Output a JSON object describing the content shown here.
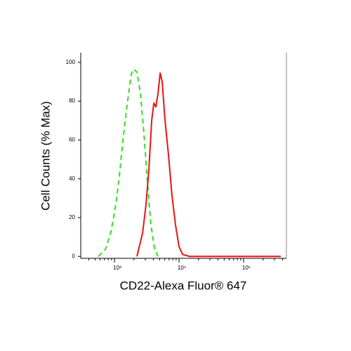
{
  "chart_data": {
    "type": "line",
    "x_label": "CD22-Alexa Fluor® 647",
    "y_label": "Cell Counts (% Max)",
    "xscale": "log",
    "xlim": [
      300,
      460000
    ],
    "ylim": [
      -1,
      105
    ],
    "xticks": [
      {
        "value": 1000,
        "label": "10³"
      },
      {
        "value": 10000,
        "label": "10⁴"
      },
      {
        "value": 100000,
        "label": "10⁵"
      }
    ],
    "xminorticks": [
      400,
      500,
      600,
      700,
      800,
      900,
      2000,
      3000,
      4000,
      5000,
      6000,
      7000,
      8000,
      9000,
      20000,
      30000,
      40000,
      50000,
      60000,
      70000,
      80000,
      90000,
      200000,
      300000,
      400000
    ],
    "yticks": [
      0,
      20,
      40,
      60,
      80,
      100
    ],
    "series": [
      {
        "color": "#33dd22",
        "dash": true,
        "x": [
          562,
          723,
          883,
          1051,
          1191,
          1384,
          1610,
          1824,
          1965,
          2228,
          2523,
          2862,
          3243,
          3674,
          4168,
          4721
        ],
        "values": [
          0,
          3.6,
          12.6,
          27,
          41.5,
          63,
          81,
          94,
          96.5,
          95,
          84,
          63,
          38,
          16,
          4,
          0
        ]
      },
      {
        "color": "#ee1111",
        "dash": false,
        "x": [
          2228,
          2722,
          3084,
          3412,
          3768,
          4064,
          4378,
          4721,
          5093,
          5483,
          6067,
          6874,
          7788,
          8831,
          10000,
          11330,
          14540,
          376700
        ],
        "values": [
          0,
          12,
          27,
          45,
          70,
          79,
          77,
          84,
          94.5,
          90,
          70,
          52,
          31,
          16,
          5,
          1,
          0,
          0
        ]
      }
    ]
  }
}
